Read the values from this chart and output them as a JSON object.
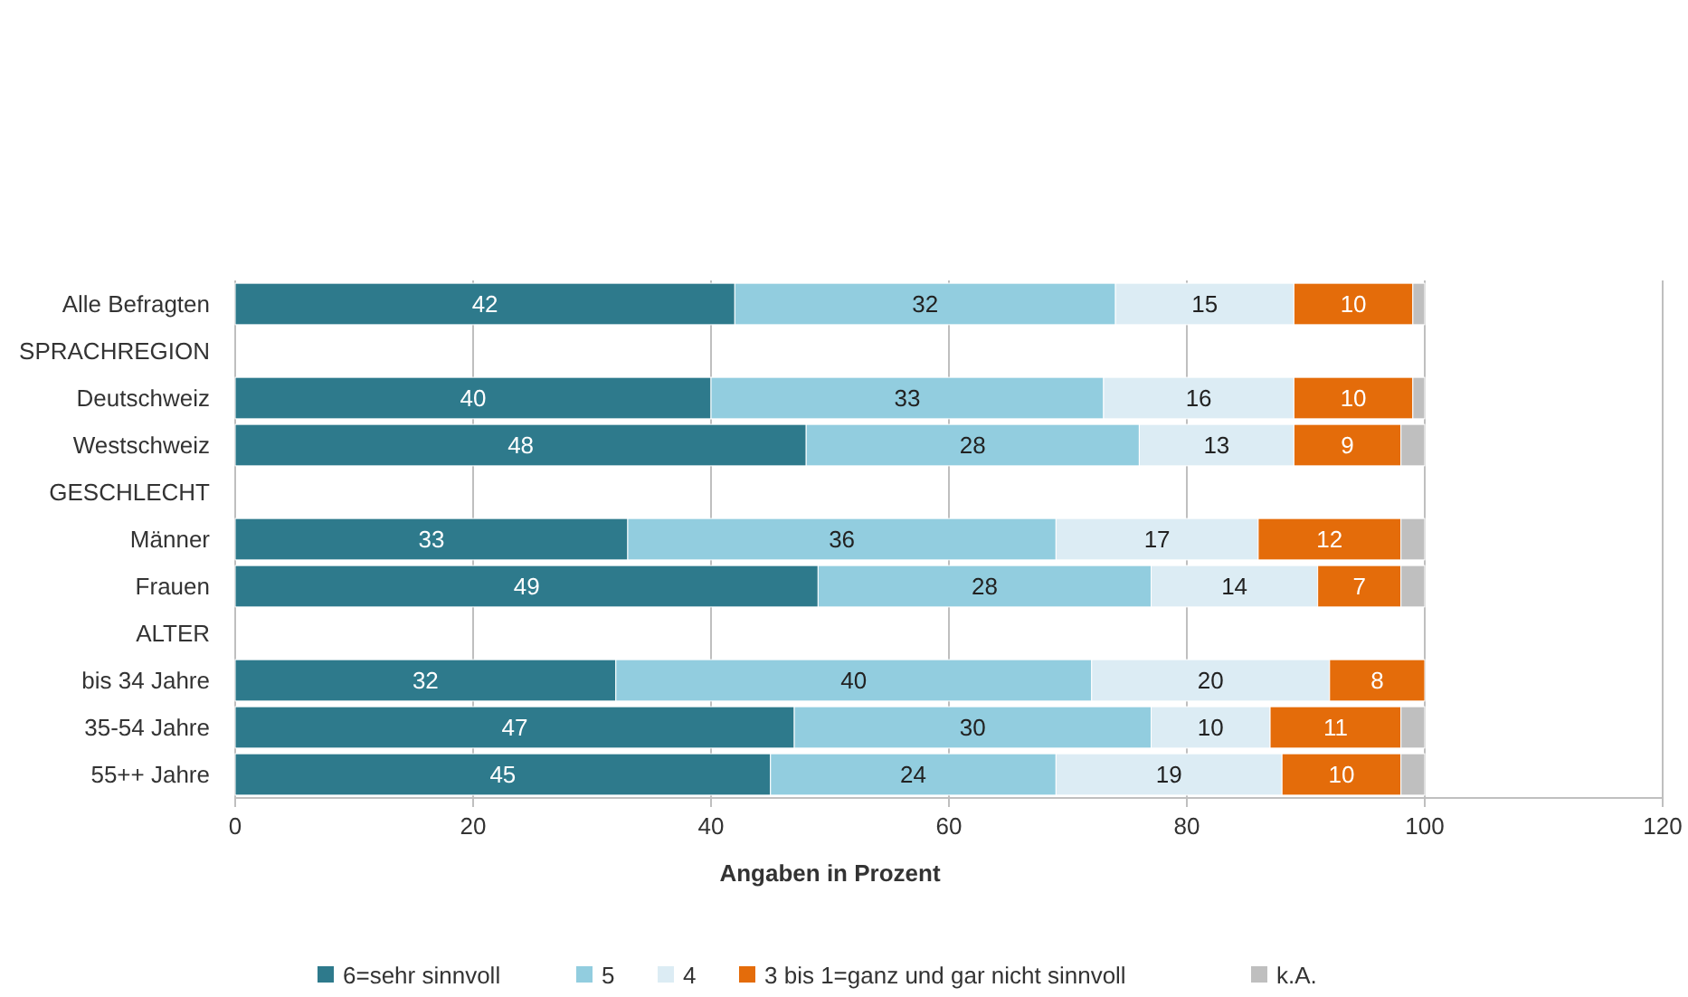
{
  "chart_data": {
    "type": "bar",
    "orientation": "horizontal",
    "stacked": true,
    "xlabel": "Angaben in Prozent",
    "categories": [
      "Alle Befragten",
      "SPRACHREGION",
      "Deutschweiz",
      "Westschweiz",
      "GESCHLECHT",
      "Männer",
      "Frauen",
      "ALTER",
      "bis 34 Jahre",
      "35-54 Jahre",
      "55++ Jahre"
    ],
    "series": [
      {
        "name": "6=sehr sinnvoll",
        "color": "#2e7a8c",
        "values": [
          42,
          null,
          40,
          48,
          null,
          33,
          49,
          null,
          32,
          47,
          45
        ],
        "value_labels": [
          "42",
          null,
          "40",
          "48",
          null,
          "33",
          "49",
          null,
          "32",
          "47",
          "45"
        ]
      },
      {
        "name": "5",
        "color": "#92cddf",
        "values": [
          32,
          null,
          33,
          28,
          null,
          36,
          28,
          null,
          40,
          30,
          24
        ],
        "value_labels": [
          "32",
          null,
          "33",
          "28",
          null,
          "36",
          "28",
          null,
          "40",
          "30",
          "24"
        ]
      },
      {
        "name": "4",
        "color": "#dcecf4",
        "values": [
          15,
          null,
          16,
          13,
          null,
          17,
          14,
          null,
          20,
          10,
          19
        ],
        "value_labels": [
          "15",
          null,
          "16",
          "13",
          null,
          "17",
          "14",
          null,
          "20",
          "10",
          "19"
        ]
      },
      {
        "name": "3 bis 1=ganz und gar nicht sinnvoll",
        "color": "#e46c0a",
        "values": [
          10,
          null,
          10,
          9,
          null,
          12,
          7,
          null,
          8,
          11,
          10
        ],
        "value_labels": [
          "10",
          null,
          "10",
          "9",
          null,
          "12",
          "7",
          null,
          "8",
          "11",
          "10"
        ]
      },
      {
        "name": "k.A.",
        "color": "#bfbfbf",
        "values": [
          1,
          null,
          1,
          2,
          null,
          2,
          2,
          null,
          0,
          2,
          2
        ],
        "value_labels": [
          null,
          null,
          null,
          null,
          null,
          null,
          null,
          null,
          null,
          null,
          null
        ]
      }
    ],
    "xlim": [
      0,
      120
    ],
    "xticks": [
      0,
      20,
      40,
      60,
      80,
      100,
      120
    ],
    "grid": "x",
    "legend": "bottom"
  }
}
